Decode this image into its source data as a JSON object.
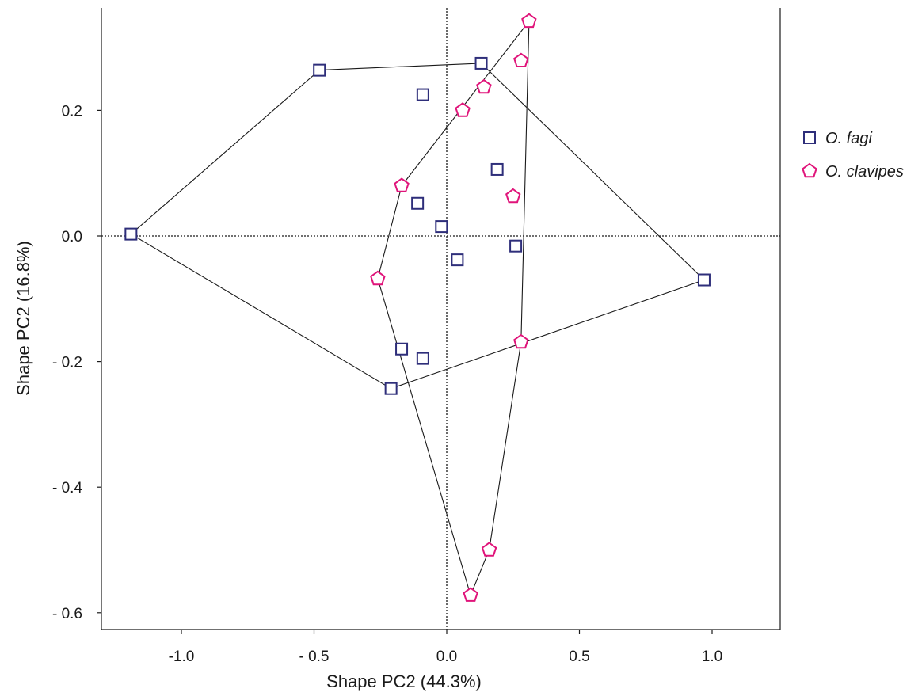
{
  "chart_data": {
    "type": "scatter",
    "title": "",
    "xlabel": "Shape PC2 (44.3%)",
    "ylabel": "Shape PC2 (16.8%)",
    "xlim": [
      -1.3,
      1.25
    ],
    "ylim": [
      -0.63,
      0.36
    ],
    "xticks": [
      -1.0,
      -0.5,
      0.0,
      0.5,
      1.0
    ],
    "xtick_labels": [
      "-1.0",
      "- 0.5",
      "0.0",
      "0.5",
      "1.0"
    ],
    "yticks": [
      0.2,
      0.0,
      -0.2,
      -0.4,
      -0.6
    ],
    "ytick_labels": [
      "0.2",
      "0.0",
      "- 0.2",
      "- 0.4",
      "- 0.6"
    ],
    "reference_lines": {
      "x": 0,
      "y": 0,
      "style": "dotted"
    },
    "grid": false,
    "legend_position": "right",
    "series": [
      {
        "name": "O. fagi",
        "marker": "square",
        "color": "#2e2e7a",
        "points": [
          {
            "x": -1.19,
            "y": 0.003
          },
          {
            "x": -0.48,
            "y": 0.264
          },
          {
            "x": 0.13,
            "y": 0.275
          },
          {
            "x": -0.09,
            "y": 0.225
          },
          {
            "x": 0.19,
            "y": 0.106
          },
          {
            "x": -0.11,
            "y": 0.052
          },
          {
            "x": -0.02,
            "y": 0.015
          },
          {
            "x": 0.04,
            "y": -0.038
          },
          {
            "x": 0.26,
            "y": -0.016
          },
          {
            "x": 0.97,
            "y": -0.07
          },
          {
            "x": -0.17,
            "y": -0.18
          },
          {
            "x": -0.09,
            "y": -0.195
          },
          {
            "x": -0.21,
            "y": -0.243
          }
        ],
        "hull": [
          {
            "x": -1.19,
            "y": 0.003
          },
          {
            "x": -0.48,
            "y": 0.264
          },
          {
            "x": 0.13,
            "y": 0.275
          },
          {
            "x": 0.97,
            "y": -0.07
          },
          {
            "x": -0.21,
            "y": -0.243
          }
        ]
      },
      {
        "name": "O. clavipes",
        "marker": "pentagon",
        "color": "#e0147a",
        "points": [
          {
            "x": 0.31,
            "y": 0.342
          },
          {
            "x": 0.28,
            "y": 0.279
          },
          {
            "x": 0.14,
            "y": 0.237
          },
          {
            "x": 0.06,
            "y": 0.2
          },
          {
            "x": -0.17,
            "y": 0.08
          },
          {
            "x": 0.25,
            "y": 0.063
          },
          {
            "x": -0.26,
            "y": -0.068
          },
          {
            "x": 0.28,
            "y": -0.169
          },
          {
            "x": 0.16,
            "y": -0.5
          },
          {
            "x": 0.09,
            "y": -0.572
          }
        ],
        "hull": [
          {
            "x": 0.31,
            "y": 0.342
          },
          {
            "x": 0.28,
            "y": -0.169
          },
          {
            "x": 0.16,
            "y": -0.5
          },
          {
            "x": 0.09,
            "y": -0.572
          },
          {
            "x": -0.26,
            "y": -0.068
          },
          {
            "x": -0.17,
            "y": 0.08
          }
        ]
      }
    ]
  }
}
